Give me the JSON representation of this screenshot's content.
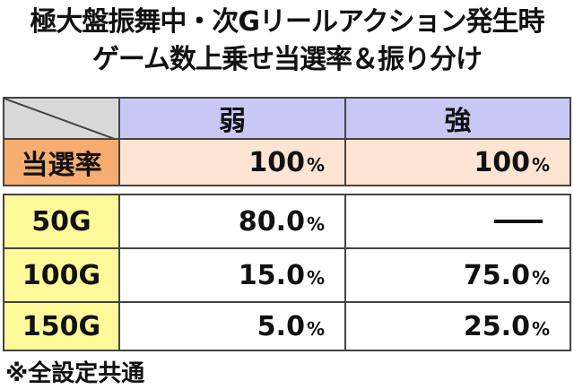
{
  "title": {
    "line1": "極大盤振舞中・次Gリールアクション発生時",
    "line2": "ゲーム数上乗せ当選率＆振り分け"
  },
  "table": {
    "columns": [
      "弱",
      "強"
    ],
    "rate_row": {
      "label": "当選率",
      "values": [
        "100",
        "100"
      ]
    },
    "unit": "%",
    "rows": [
      {
        "label": "50G",
        "values": [
          "80.0",
          "—"
        ]
      },
      {
        "label": "100G",
        "values": [
          "15.0",
          "75.0"
        ]
      },
      {
        "label": "150G",
        "values": [
          "5.0",
          "25.0"
        ]
      }
    ]
  },
  "note": "※全設定共通",
  "colors": {
    "header": "#c9c8f4",
    "corner": "#d9d9d9",
    "rate_label": "#f6ad6f",
    "rate_value": "#fde4d3",
    "row_label": "#fff99a"
  }
}
